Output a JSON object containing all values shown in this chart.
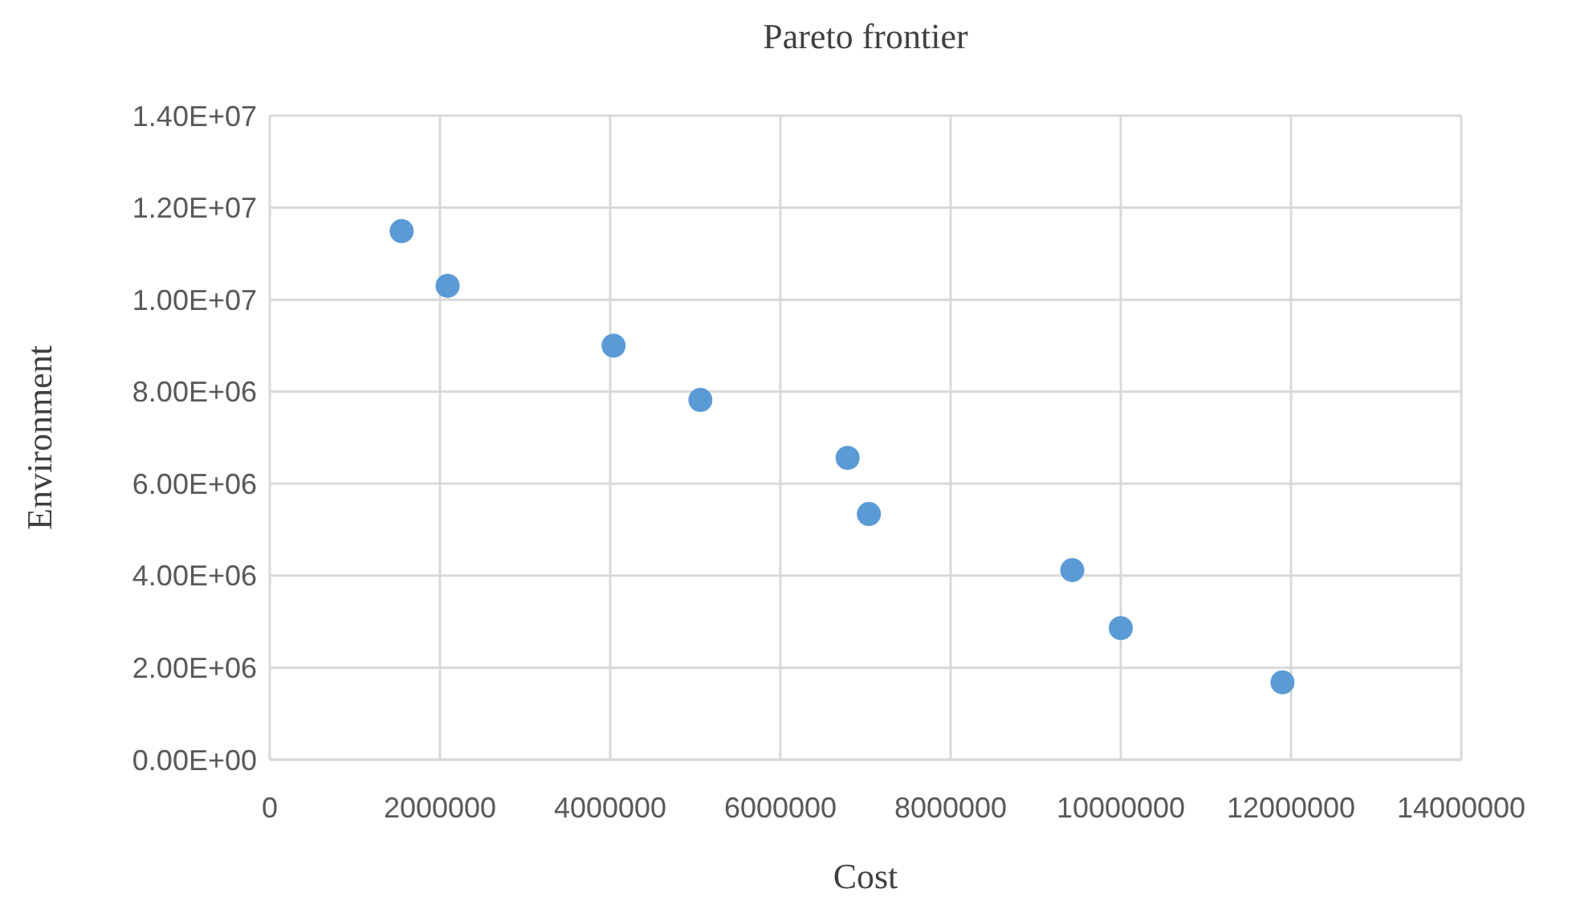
{
  "chart_data": {
    "type": "scatter",
    "title": "Pareto frontier",
    "xlabel": "Cost",
    "ylabel": "Environment",
    "x": [
      1550000,
      2090000,
      4040000,
      5060000,
      6790000,
      7040000,
      9430000,
      10000000,
      11900000
    ],
    "series": [
      {
        "color": "#5b9bd5",
        "values": [
          11490000,
          10300000,
          9000000,
          7820000,
          6560000,
          5340000,
          4120000,
          2860000,
          1680000
        ]
      }
    ],
    "xlim": [
      0,
      14000000
    ],
    "xticks": [
      0,
      2000000,
      4000000,
      6000000,
      8000000,
      10000000,
      12000000,
      14000000
    ],
    "ylim": [
      0,
      14000000
    ],
    "yticks": [
      {
        "value": 0,
        "label": "0.00E+00"
      },
      {
        "value": 2000000,
        "label": "2.00E+06"
      },
      {
        "value": 4000000,
        "label": "4.00E+06"
      },
      {
        "value": 6000000,
        "label": "6.00E+06"
      },
      {
        "value": 8000000,
        "label": "8.00E+06"
      },
      {
        "value": 10000000,
        "label": "1.00E+07"
      },
      {
        "value": 12000000,
        "label": "1.20E+07"
      },
      {
        "value": 14000000,
        "label": "1.40E+07"
      }
    ],
    "grid": true,
    "marker": "circle"
  }
}
